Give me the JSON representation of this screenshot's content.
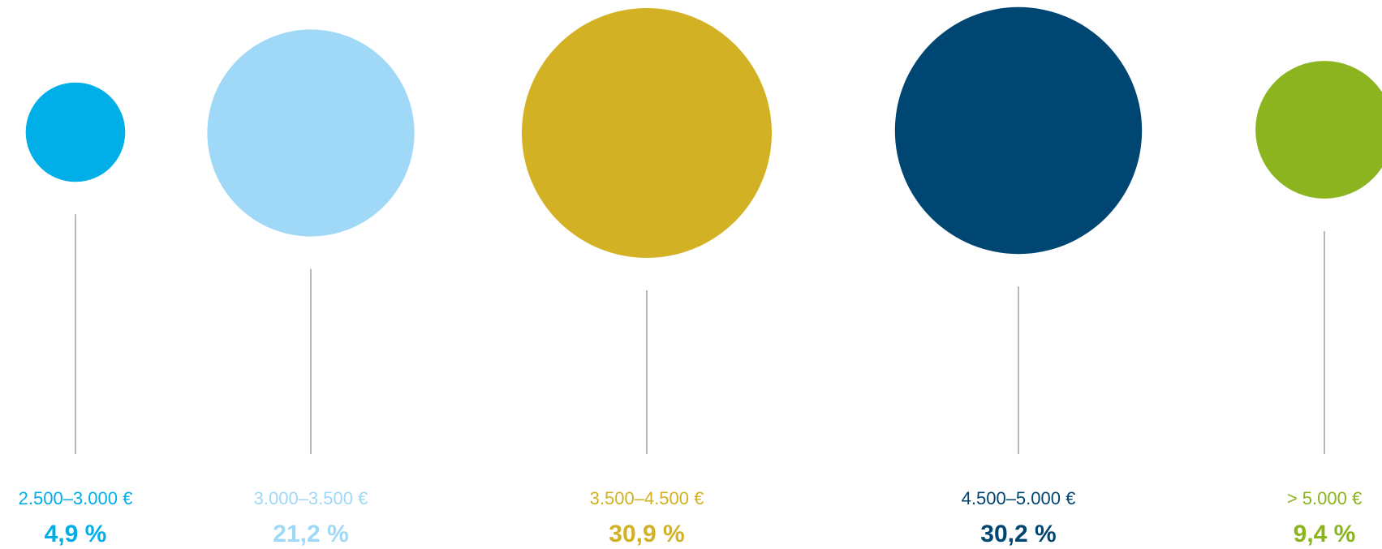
{
  "chart_data": {
    "type": "bubble",
    "title": "",
    "grid": false,
    "legend": "none",
    "categories": [
      "2.500–3.000 €",
      "3.000–3.500 €",
      "3.500–4.500 €",
      "4.500–5.000 €",
      "> 5.000 €"
    ],
    "values": [
      4.9,
      21.2,
      30.9,
      30.2,
      9.4
    ],
    "value_labels": [
      "4,9 %",
      "21,2 %",
      "30,9 %",
      "30,2 %",
      "9,4 %"
    ],
    "unit": "%",
    "colors": [
      "#00aee8",
      "#9fd9f7",
      "#d2b224",
      "#004673",
      "#8cb41f"
    ]
  }
}
